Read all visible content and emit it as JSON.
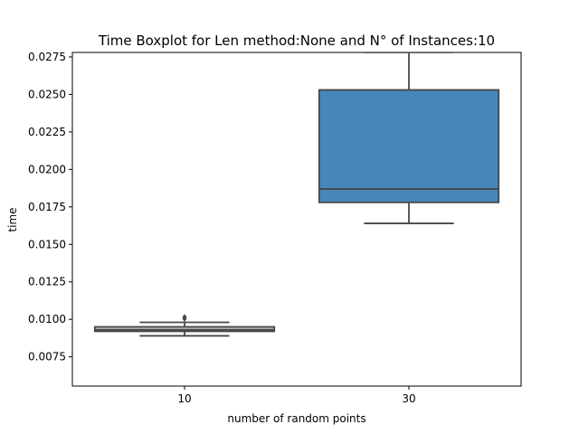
{
  "chart_data": {
    "type": "boxplot",
    "title": "Time Boxplot for Len method:None and N° of Instances:10",
    "xlabel": "number of random points",
    "ylabel": "time",
    "categories": [
      "10",
      "30"
    ],
    "ylim": [
      0.00555,
      0.0278
    ],
    "yticks": [
      "0.0075",
      "0.0100",
      "0.0125",
      "0.0150",
      "0.0175",
      "0.0200",
      "0.0225",
      "0.0250",
      "0.0275"
    ],
    "grid": false,
    "boxes": [
      {
        "category": "10",
        "whisker_low": 0.0089,
        "q1": 0.0092,
        "median": 0.0093,
        "q3": 0.0095,
        "whisker_high": 0.0098,
        "outliers": [
          0.01005,
          0.01015
        ],
        "color": "#b9b9b9"
      },
      {
        "category": "30",
        "whisker_low": 0.0164,
        "q1": 0.0178,
        "median": 0.0187,
        "q3": 0.0253,
        "whisker_high": 0.0278,
        "outliers": [],
        "color": "#4786b8"
      }
    ],
    "line_color": "#474747"
  }
}
